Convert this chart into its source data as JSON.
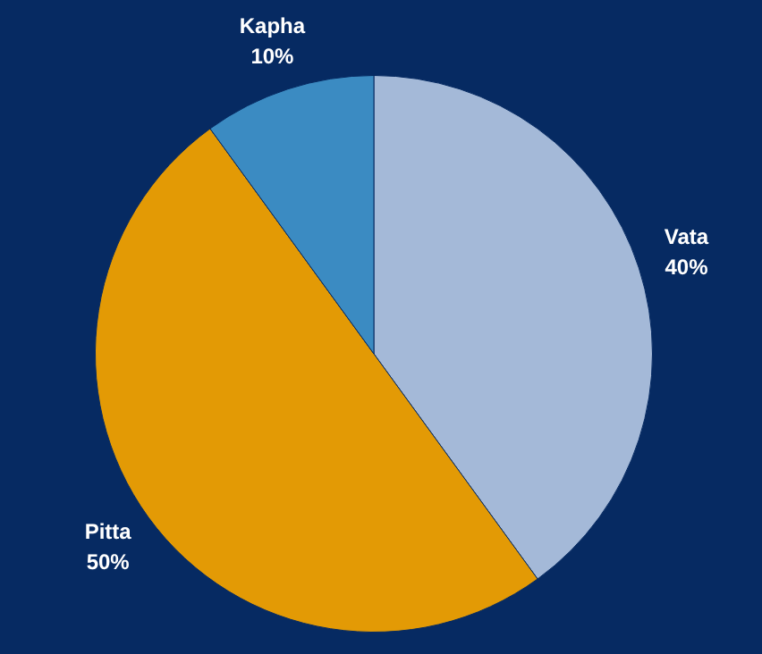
{
  "chart_data": {
    "type": "pie",
    "categories": [
      "Vata",
      "Pitta",
      "Kapha"
    ],
    "values": [
      40,
      50,
      10
    ],
    "colors": [
      "#a4b9d8",
      "#e39a05",
      "#3b8bc2"
    ],
    "value_labels": [
      "40%",
      "50%",
      "10%"
    ],
    "legend": false
  }
}
